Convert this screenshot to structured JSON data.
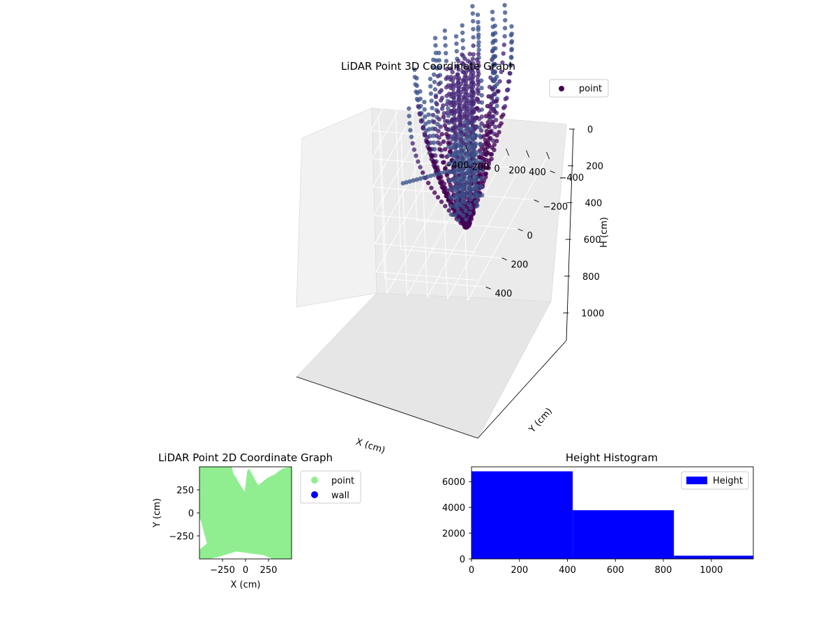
{
  "chart_data": [
    {
      "type": "scatter",
      "title": "LiDAR Point 3D Coordinate Graph",
      "xlabel": "X (cm)",
      "ylabel": "Y (cm)",
      "zlabel": "H (cm)",
      "x_ticks": [
        "-400",
        "-200",
        "0",
        "200",
        "400"
      ],
      "y_ticks": [
        "-400",
        "-200",
        "0",
        "200",
        "400"
      ],
      "z_ticks": [
        "0",
        "200",
        "400",
        "600",
        "800",
        "1000"
      ],
      "xlim": [
        -500,
        500
      ],
      "ylim": [
        -500,
        500
      ],
      "zlim": [
        0,
        1150
      ],
      "z_inverted": true,
      "grid": true,
      "legend": {
        "position": "top-right",
        "entries": [
          "point"
        ]
      },
      "colors": {
        "dark": "#440154",
        "mid": "#482878",
        "light": "#3b528b"
      },
      "series": [
        {
          "name": "point",
          "description_points": "vertical arcs of LiDAR returns fanning around the sensor at the origin; heights 0–1150 cm"
        }
      ]
    },
    {
      "type": "scatter",
      "title": "LiDAR Point 2D Coordinate Graph",
      "xlabel": "X (cm)",
      "ylabel": "Y (cm)",
      "x_ticks": [
        "-250",
        "0",
        "250"
      ],
      "y_ticks": [
        "-250",
        "0",
        "250"
      ],
      "xlim": [
        -500,
        500
      ],
      "ylim": [
        -500,
        500
      ],
      "legend": {
        "position": "right",
        "entries": [
          "point",
          "wall"
        ]
      },
      "colors": {
        "point": "#90ee90",
        "wall": "#0000ff"
      },
      "series": [
        {
          "name": "point",
          "polygon": [
            [
              -500,
              -500
            ],
            [
              -500,
              -400
            ],
            [
              -420,
              -330
            ],
            [
              -450,
              -220
            ],
            [
              -480,
              -100
            ],
            [
              -500,
              -50
            ],
            [
              -500,
              500
            ],
            [
              -150,
              500
            ],
            [
              -130,
              420
            ],
            [
              -100,
              380
            ],
            [
              -80,
              340
            ],
            [
              -10,
              230
            ],
            [
              20,
              460
            ],
            [
              40,
              480
            ],
            [
              120,
              330
            ],
            [
              140,
              300
            ],
            [
              200,
              350
            ],
            [
              240,
              380
            ],
            [
              320,
              420
            ],
            [
              400,
              480
            ],
            [
              500,
              500
            ],
            [
              500,
              -500
            ],
            [
              300,
              -500
            ],
            [
              200,
              -460
            ],
            [
              -100,
              -420
            ],
            [
              -200,
              -450
            ],
            [
              -300,
              -480
            ],
            [
              -400,
              -500
            ]
          ]
        },
        {
          "name": "wall",
          "points": []
        }
      ]
    },
    {
      "type": "bar",
      "title": "Height Histogram",
      "xlabel": "",
      "ylabel": "",
      "x_ticks": [
        "0",
        "200",
        "400",
        "600",
        "800",
        "1000"
      ],
      "y_ticks": [
        "0",
        "2000",
        "4000",
        "6000"
      ],
      "xlim": [
        0,
        1175
      ],
      "ylim": [
        0,
        7150
      ],
      "legend": {
        "position": "top-right",
        "entries": [
          "Height"
        ]
      },
      "colors": {
        "bar": "#0000ff"
      },
      "bins": [
        {
          "start": 0,
          "end": 422,
          "count": 6800
        },
        {
          "start": 422,
          "end": 844,
          "count": 3780
        },
        {
          "start": 844,
          "end": 1175,
          "count": 250
        }
      ],
      "series": [
        {
          "name": "Height",
          "values": [
            6800,
            3780,
            250
          ]
        }
      ]
    }
  ]
}
